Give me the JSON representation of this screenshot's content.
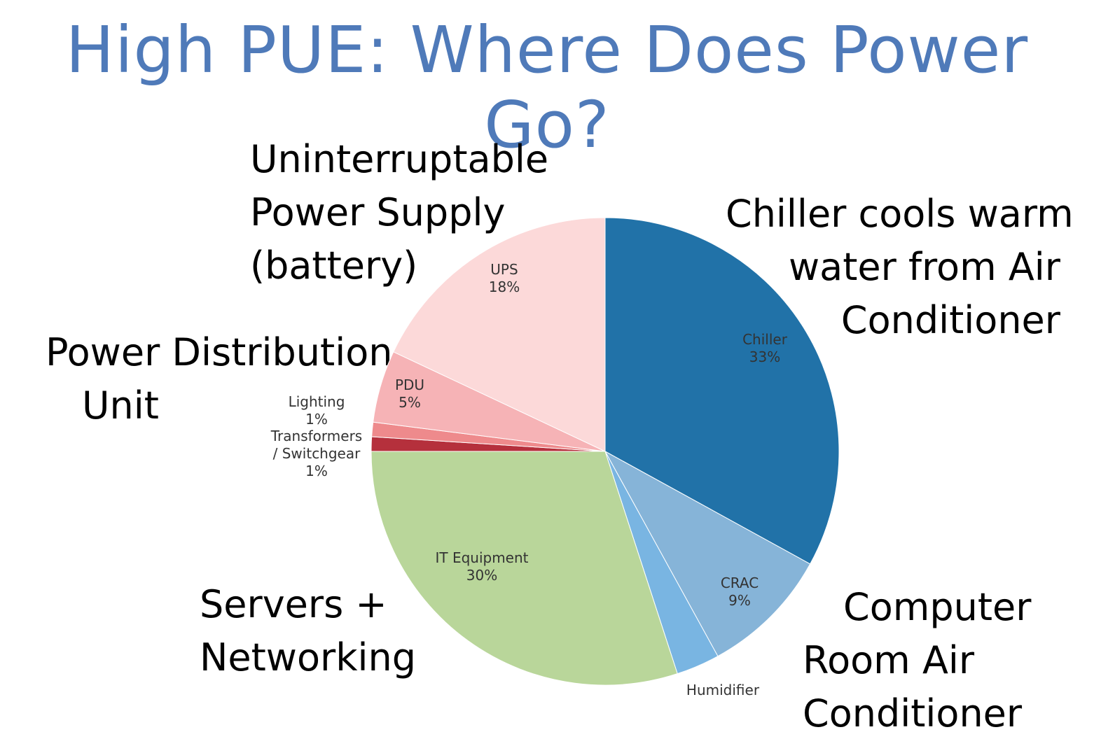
{
  "title": "High PUE: Where Does Power Go?",
  "callouts": {
    "ups": [
      "Uninterruptable",
      "Power Supply",
      "(battery)"
    ],
    "pdu": [
      "Power Distribution",
      "Unit"
    ],
    "chiller": [
      "Chiller cools warm",
      "water from Air",
      "Conditioner"
    ],
    "it": [
      "Servers +",
      "Networking"
    ],
    "crac": [
      "Computer",
      "Room Air",
      "Conditioner"
    ]
  },
  "chart_data": {
    "type": "pie",
    "title": "High PUE: Where Does Power Go?",
    "slices": [
      {
        "name": "Chiller",
        "value": 33,
        "label": "33%",
        "color": "#2172a8"
      },
      {
        "name": "CRAC",
        "value": 9,
        "label": "9%",
        "color": "#86b4d8"
      },
      {
        "name": "Humidifier",
        "value": 3,
        "label": "",
        "color": "#79b5e2"
      },
      {
        "name": "IT Equipment",
        "value": 30,
        "label": "30%",
        "color": "#b9d69a"
      },
      {
        "name": "Transformers / Switchgear",
        "value": 1,
        "label": "1%",
        "color": "#b5303c"
      },
      {
        "name": "Lighting",
        "value": 1,
        "label": "1%",
        "color": "#ee8a8c"
      },
      {
        "name": "PDU",
        "value": 5,
        "label": "5%",
        "color": "#f6b3b6"
      },
      {
        "name": "UPS",
        "value": 18,
        "label": "18%",
        "color": "#fcd9d9"
      }
    ]
  }
}
